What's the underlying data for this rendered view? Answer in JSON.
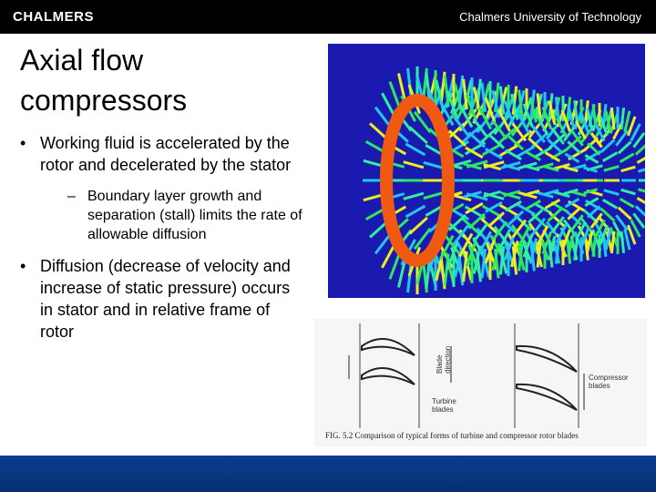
{
  "header": {
    "logo": "CHALMERS",
    "university": "Chalmers University of Technology"
  },
  "title": "Axial flow compressors",
  "bullets": [
    {
      "text": "Working fluid is accelerated by the rotor and decelerated by the stator",
      "sub": [
        "Boundary layer growth and separation (stall) limits the rate of allowable diffusion"
      ]
    },
    {
      "text": "Diffusion (decrease of velocity and increase of static pressure) occurs in stator and in relative frame of rotor"
    }
  ],
  "figure": {
    "labels": {
      "blade_direction": "Blade direction",
      "turbine": "Turbine blades",
      "compressor": "Compressor blades"
    },
    "caption": "FIG. 5.2 Comparison of typical forms of turbine and compressor rotor blades"
  }
}
